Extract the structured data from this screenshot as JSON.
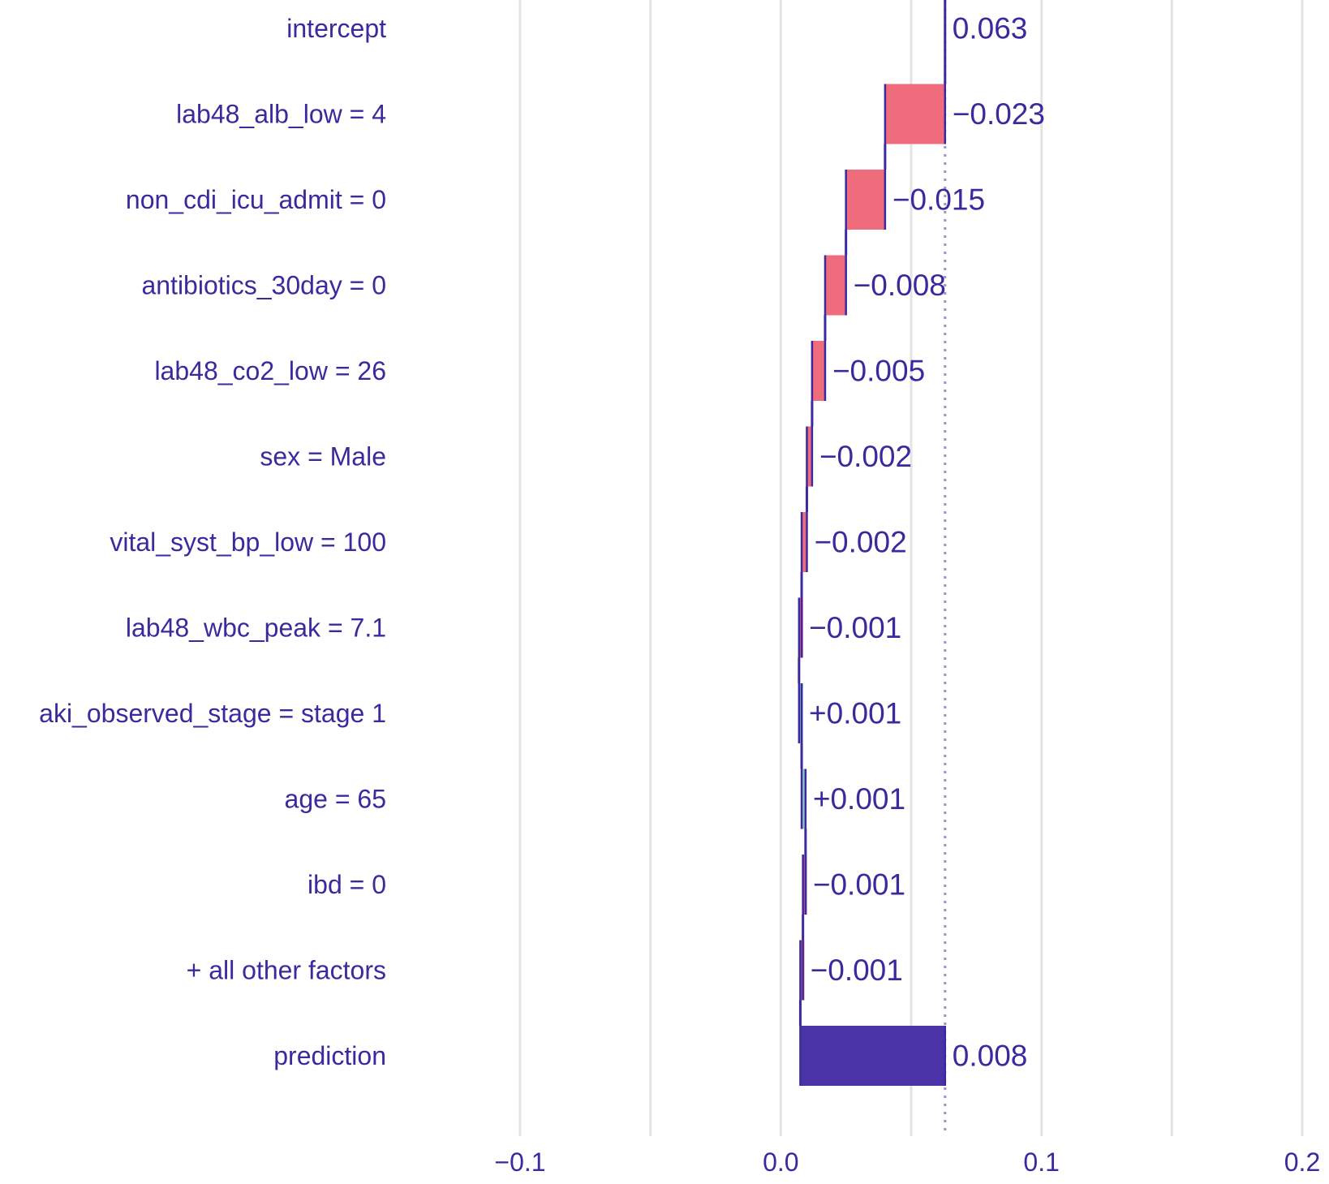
{
  "chart_data": {
    "type": "bar",
    "subtype": "waterfall",
    "title": "",
    "xlabel": "",
    "ylabel": "",
    "xlim": [
      -0.1,
      0.2
    ],
    "x_ticks": [
      -0.1,
      0.0,
      0.1,
      0.2
    ],
    "x_tick_labels": [
      "−0.1",
      "0.0",
      "0.1",
      "0.2"
    ],
    "grid": "vertical",
    "reference_line": 0.063,
    "rows": [
      {
        "label": "intercept",
        "kind": "intercept",
        "start": 0,
        "end": 0.063,
        "value": 0.063,
        "value_label": "0.063"
      },
      {
        "label": "lab48_alb_low = 4",
        "kind": "decrease",
        "start": 0.063,
        "end": 0.04,
        "value": -0.023,
        "value_label": "−0.023"
      },
      {
        "label": "non_cdi_icu_admit = 0",
        "kind": "decrease",
        "start": 0.04,
        "end": 0.025,
        "value": -0.015,
        "value_label": "−0.015"
      },
      {
        "label": "antibiotics_30day = 0",
        "kind": "decrease",
        "start": 0.025,
        "end": 0.017,
        "value": -0.008,
        "value_label": "−0.008"
      },
      {
        "label": "lab48_co2_low = 26",
        "kind": "decrease",
        "start": 0.017,
        "end": 0.012,
        "value": -0.005,
        "value_label": "−0.005"
      },
      {
        "label": "sex = Male",
        "kind": "decrease",
        "start": 0.012,
        "end": 0.01,
        "value": -0.002,
        "value_label": "−0.002"
      },
      {
        "label": "vital_syst_bp_low = 100",
        "kind": "decrease",
        "start": 0.01,
        "end": 0.008,
        "value": -0.002,
        "value_label": "−0.002"
      },
      {
        "label": "lab48_wbc_peak = 7.1",
        "kind": "decrease",
        "start": 0.008,
        "end": 0.007,
        "value": -0.001,
        "value_label": "−0.001"
      },
      {
        "label": "aki_observed_stage = stage 1",
        "kind": "increase",
        "start": 0.007,
        "end": 0.008,
        "value": 0.001,
        "value_label": "+0.001"
      },
      {
        "label": "age = 65",
        "kind": "increase",
        "start": 0.008,
        "end": 0.0095,
        "value": 0.001,
        "value_label": "+0.001"
      },
      {
        "label": "ibd = 0",
        "kind": "decrease",
        "start": 0.0095,
        "end": 0.0085,
        "value": -0.001,
        "value_label": "−0.001"
      },
      {
        "label": "+ all other factors",
        "kind": "decrease",
        "start": 0.0085,
        "end": 0.0075,
        "value": -0.001,
        "value_label": "−0.001"
      },
      {
        "label": "prediction",
        "kind": "prediction",
        "start": 0.0075,
        "end": 0.063,
        "value": 0.008,
        "value_label": "0.008"
      }
    ],
    "colors": {
      "text": "#3a2a9e",
      "connector": "#3a2a9e",
      "decrease": "#ee6c7c",
      "increase": "#8ec9c3",
      "prediction": "#4b34a8",
      "grid": "#e3e3e3",
      "reference_line": "#9a92cf"
    }
  }
}
